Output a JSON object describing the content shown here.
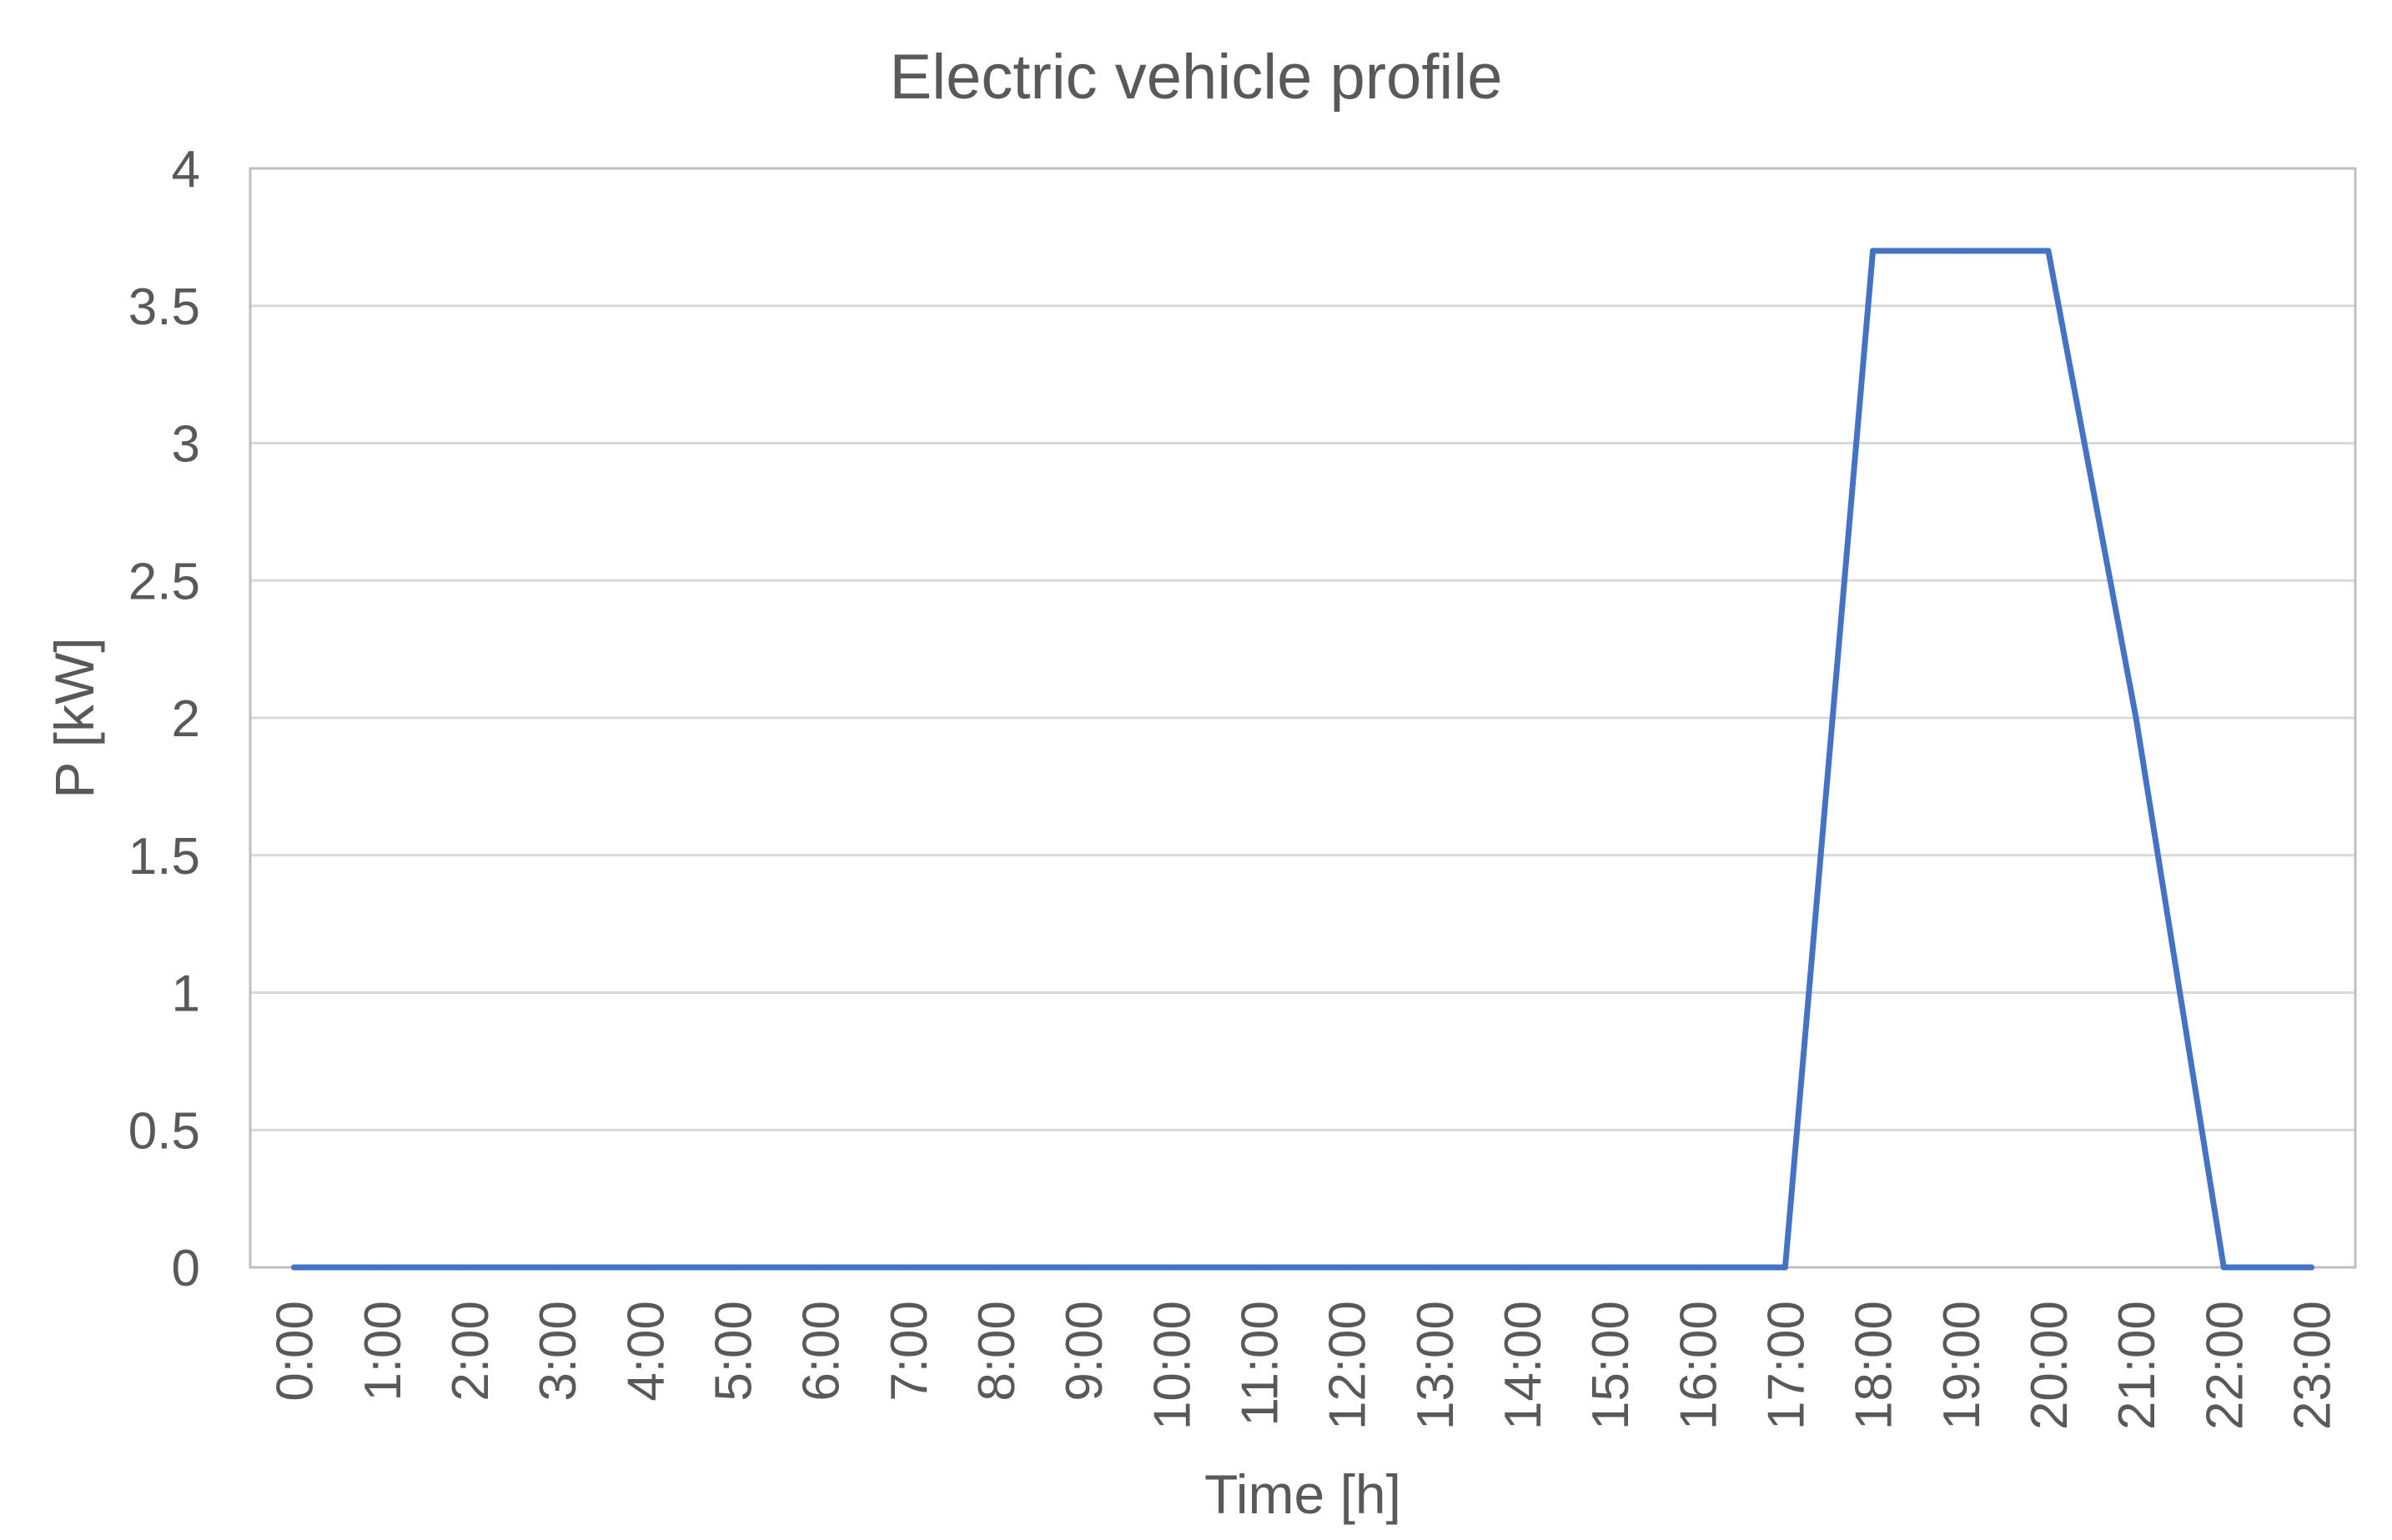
{
  "chart_data": {
    "type": "line",
    "title": "Electric vehicle profile",
    "xlabel": "Time [h]",
    "ylabel": "P [kW]",
    "categories": [
      "0:00",
      "1:00",
      "2:00",
      "3:00",
      "4:00",
      "5:00",
      "6:00",
      "7:00",
      "8:00",
      "9:00",
      "10:00",
      "11:00",
      "12:00",
      "13:00",
      "14:00",
      "15:00",
      "16:00",
      "17:00",
      "18:00",
      "19:00",
      "20:00",
      "21:00",
      "22:00",
      "23:00"
    ],
    "series": [
      {
        "values": [
          0,
          0,
          0,
          0,
          0,
          0,
          0,
          0,
          0,
          0,
          0,
          0,
          0,
          0,
          0,
          0,
          0,
          0,
          3.7,
          3.7,
          3.7,
          2.0,
          0,
          0
        ],
        "color": "#4472C4"
      }
    ],
    "ylim": [
      0,
      4
    ],
    "yticks": [
      "0",
      "0.5",
      "1",
      "1.5",
      "2",
      "2.5",
      "3",
      "3.5",
      "4"
    ],
    "grid": true,
    "legend": "none",
    "colors": {
      "text": "#595959",
      "grid": "#D9D9D9",
      "border": "#BFBFBF"
    }
  }
}
